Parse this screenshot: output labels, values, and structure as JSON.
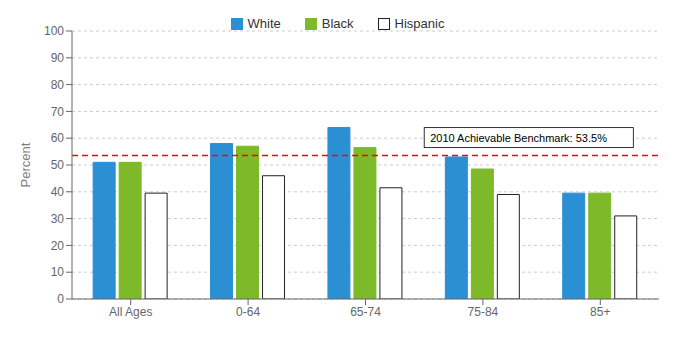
{
  "chart_data": {
    "type": "bar",
    "categories": [
      "All Ages",
      "0-64",
      "65-74",
      "75-84",
      "85+"
    ],
    "series": [
      {
        "name": "White",
        "color": "#2B8FD4",
        "values": [
          51,
          58,
          64,
          53,
          39.5
        ]
      },
      {
        "name": "Black",
        "color": "#7DB928",
        "values": [
          51,
          57,
          56.5,
          48.5,
          39.5
        ]
      },
      {
        "name": "Hispanic",
        "color": "#FFFFFF",
        "values": [
          39.5,
          46,
          41.5,
          39,
          31
        ]
      }
    ],
    "ylabel": "Percent",
    "ylim": [
      0,
      100
    ],
    "yticks": [
      0,
      10,
      20,
      30,
      40,
      50,
      60,
      70,
      80,
      90,
      100
    ],
    "grid": true,
    "legend": "top",
    "reference_lines": [
      {
        "value": 53.5,
        "label": "2010 Achievable Benchmark: 53.5%",
        "color": "red",
        "line_style": "dashed"
      }
    ]
  }
}
